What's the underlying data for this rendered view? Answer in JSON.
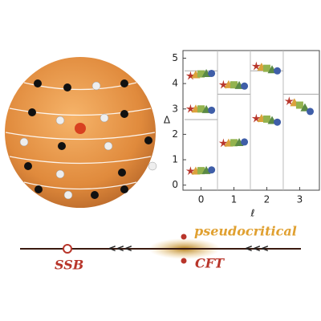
{
  "chart_data": {
    "type": "scatter",
    "xlabel": "ℓ",
    "ylabel": "Δ",
    "xlim": [
      -0.55,
      3.6
    ],
    "ylim": [
      -0.2,
      5.3
    ],
    "xticks": [
      0,
      1,
      2,
      3
    ],
    "yticks": [
      0,
      1,
      2,
      3,
      4,
      5
    ],
    "separators": [
      0.5,
      1.5,
      2.5
    ],
    "reference_levels": [
      {
        "x0": -0.5,
        "x1": 0.5,
        "y": 2.58
      },
      {
        "x0": -0.5,
        "x1": 0.5,
        "y": 4.5
      },
      {
        "x0": 0.5,
        "x1": 1.5,
        "y": 3.58
      },
      {
        "x0": 1.5,
        "x1": 2.5,
        "y": 4.5
      },
      {
        "x0": 2.5,
        "x1": 3.6,
        "y": 3.58
      }
    ],
    "series": [
      {
        "marker": "star",
        "color": "#b8352a",
        "x": [
          -0.32,
          -0.32,
          -0.32,
          0.68,
          0.68,
          1.68,
          1.68,
          2.68
        ],
        "values": [
          0.55,
          3.0,
          4.3,
          1.65,
          3.95,
          2.62,
          4.68,
          3.3
        ]
      },
      {
        "marker": "triangle",
        "color": "#dba23c",
        "x": [
          -0.16,
          -0.16,
          -0.16,
          0.84,
          0.84,
          1.84,
          1.84,
          2.84
        ],
        "values": [
          0.56,
          3.0,
          4.35,
          1.66,
          3.96,
          2.63,
          4.65,
          3.25
        ]
      },
      {
        "marker": "square",
        "color": "#93b34e",
        "x": [
          0,
          0,
          0,
          1,
          1,
          2,
          2,
          3
        ],
        "values": [
          0.57,
          3.0,
          4.38,
          1.67,
          3.95,
          2.6,
          4.6,
          3.15
        ]
      },
      {
        "marker": "triangle",
        "color": "#5b8a45",
        "x": [
          0.16,
          0.16,
          0.16,
          1.16,
          1.16,
          2.16,
          2.16,
          3.16
        ],
        "values": [
          0.58,
          2.98,
          4.4,
          1.68,
          3.93,
          2.55,
          4.55,
          3.05
        ]
      },
      {
        "marker": "circle",
        "color": "#3f5ea8",
        "x": [
          0.32,
          0.32,
          0.32,
          1.32,
          1.32,
          2.32,
          2.32,
          3.32
        ],
        "values": [
          0.6,
          2.95,
          4.4,
          1.7,
          3.9,
          2.48,
          4.5,
          2.9
        ]
      }
    ]
  },
  "flow_diagram": {
    "top_label": "pseudocritical",
    "left_label": "SSB",
    "right_label": "CFT"
  }
}
